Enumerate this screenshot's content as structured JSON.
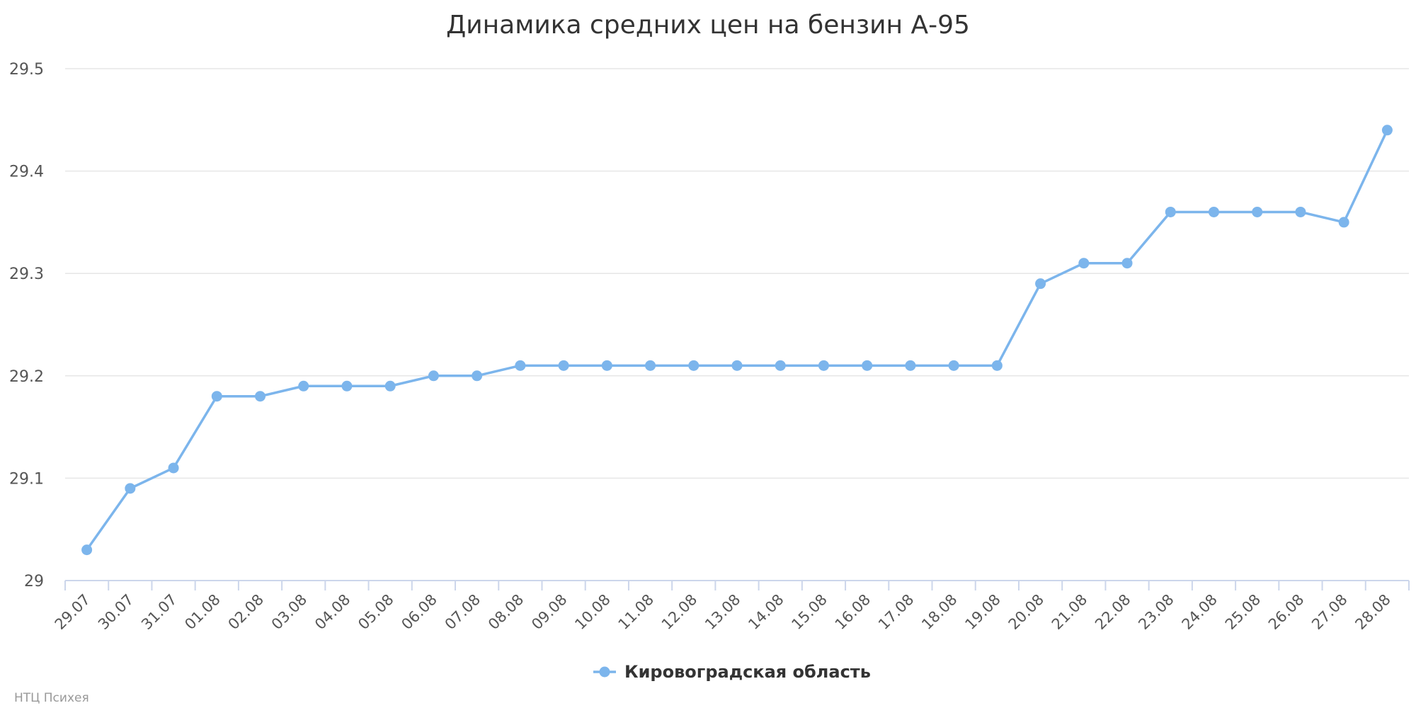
{
  "chart_data": {
    "type": "line",
    "title": "Динамика средних цен на бензин А-95",
    "xlabel": "",
    "ylabel": "",
    "ylim": [
      29,
      29.5
    ],
    "yticks": [
      "29",
      "29.1",
      "29.2",
      "29.3",
      "29.4",
      "29.5"
    ],
    "grid": true,
    "legend_position": "bottom-center",
    "categories": [
      "29.07",
      "30.07",
      "31.07",
      "01.08",
      "02.08",
      "03.08",
      "04.08",
      "05.08",
      "06.08",
      "07.08",
      "08.08",
      "09.08",
      "10.08",
      "11.08",
      "12.08",
      "13.08",
      "14.08",
      "15.08",
      "16.08",
      "17.08",
      "18.08",
      "19.08",
      "20.08",
      "21.08",
      "22.08",
      "23.08",
      "24.08",
      "25.08",
      "26.08",
      "27.08",
      "28.08"
    ],
    "series": [
      {
        "name": "Кировоградская область",
        "color": "#7cb5ec",
        "values": [
          29.03,
          29.09,
          29.11,
          29.18,
          29.18,
          29.19,
          29.19,
          29.19,
          29.2,
          29.2,
          29.21,
          29.21,
          29.21,
          29.21,
          29.21,
          29.21,
          29.21,
          29.21,
          29.21,
          29.21,
          29.21,
          29.21,
          29.29,
          29.31,
          29.31,
          29.36,
          29.36,
          29.36,
          29.36,
          29.35,
          29.44
        ]
      }
    ]
  },
  "credits": "НТЦ Психея",
  "colors": {
    "grid": "#e6e6e6",
    "axis": "#ccd6eb",
    "series": "#7cb5ec"
  }
}
